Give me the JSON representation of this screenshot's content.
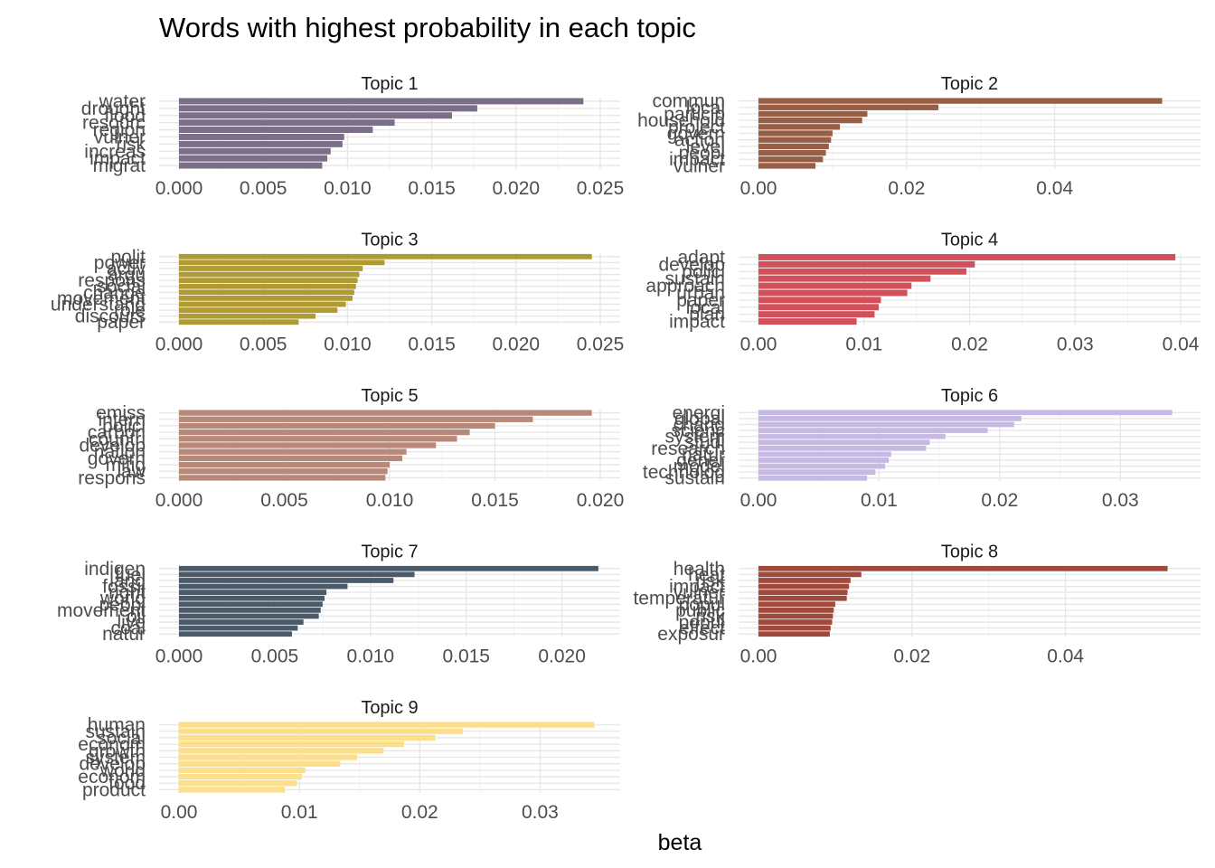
{
  "chart_data": {
    "type": "bar",
    "title": "Words with highest probability in each topic",
    "xlabel": "beta",
    "orientation": "horizontal",
    "grid": true,
    "facets": [
      {
        "label": "Topic 1",
        "color": "#7b6e87",
        "xlim": [
          0,
          0.025
        ],
        "ticks": [
          0,
          0.005,
          0.01,
          0.015,
          0.02,
          0.025
        ],
        "tick_labels": [
          "0.000",
          "0.005",
          "0.010",
          "0.015",
          "0.020",
          "0.025"
        ],
        "words": [
          "water",
          "drought",
          "flood",
          "resourc",
          "region",
          "vulner",
          "risk",
          "increas",
          "impact",
          "migrat"
        ],
        "values": [
          0.024,
          0.0177,
          0.0162,
          0.0128,
          0.0115,
          0.0098,
          0.0097,
          0.009,
          0.0088,
          0.0085
        ]
      },
      {
        "label": "Topic 2",
        "color": "#985e45",
        "xlim": [
          0,
          0.057
        ],
        "ticks": [
          0,
          0.02,
          0.04
        ],
        "tick_labels": [
          "0.00",
          "0.02",
          "0.04"
        ],
        "words": [
          "commun",
          "local",
          "particip",
          "household",
          "project",
          "govern",
          "action",
          "level",
          "peopl",
          "impact",
          "vulner"
        ],
        "values": [
          0.0545,
          0.0243,
          0.0147,
          0.014,
          0.011,
          0.01,
          0.0098,
          0.0095,
          0.0091,
          0.0087,
          0.0077
        ]
      },
      {
        "label": "Topic 3",
        "color": "#b09a33",
        "xlim": [
          0,
          0.025
        ],
        "ticks": [
          0,
          0.005,
          0.01,
          0.015,
          0.02,
          0.025
        ],
        "tick_labels": [
          "0.000",
          "0.005",
          "0.010",
          "0.015",
          "0.020",
          "0.025"
        ],
        "words": [
          "polit",
          "power",
          "activ",
          "argu",
          "respons",
          "social",
          "change",
          "movement",
          "understand",
          "role",
          "discours",
          "paper"
        ],
        "values": [
          0.0245,
          0.0122,
          0.0109,
          0.0107,
          0.0106,
          0.0105,
          0.0104,
          0.0103,
          0.0099,
          0.0094,
          0.0081,
          0.0071
        ]
      },
      {
        "label": "Topic 4",
        "color": "#d1505a",
        "xlim": [
          0,
          0.04
        ],
        "ticks": [
          0,
          0.01,
          0.02,
          0.03,
          0.04
        ],
        "tick_labels": [
          "0.00",
          "0.01",
          "0.02",
          "0.03",
          "0.04"
        ],
        "words": [
          "adapt",
          "develop",
          "polici",
          "sustain",
          "approach",
          "urban",
          "paper",
          "local",
          "plan",
          "impact"
        ],
        "values": [
          0.0395,
          0.0205,
          0.0197,
          0.0163,
          0.0145,
          0.0141,
          0.0116,
          0.0114,
          0.011,
          0.0093
        ]
      },
      {
        "label": "Topic 5",
        "color": "#b88878",
        "xlim": [
          0,
          0.02
        ],
        "ticks": [
          0,
          0.005,
          0.01,
          0.015,
          0.02
        ],
        "tick_labels": [
          "0.000",
          "0.005",
          "0.010",
          "0.015",
          "0.020"
        ],
        "words": [
          "emiss",
          "intern",
          "polici",
          "carbon",
          "countri",
          "develop",
          "nation",
          "govern",
          "mitig",
          "law",
          "respons"
        ],
        "values": [
          0.0196,
          0.0168,
          0.015,
          0.0138,
          0.0132,
          0.0122,
          0.0108,
          0.0106,
          0.01,
          0.0099,
          0.0098
        ]
      },
      {
        "label": "Topic 6",
        "color": "#c6bae4",
        "xlim": [
          0,
          0.035
        ],
        "ticks": [
          0,
          0.01,
          0.02,
          0.03
        ],
        "tick_labels": [
          "0.00",
          "0.01",
          "0.02",
          "0.03"
        ],
        "words": [
          "energi",
          "global",
          "chang",
          "scienc",
          "system",
          "studi",
          "research",
          "natur",
          "gener",
          "model",
          "technolog",
          "sustain"
        ],
        "values": [
          0.0343,
          0.0218,
          0.0212,
          0.019,
          0.0155,
          0.0142,
          0.0139,
          0.011,
          0.0108,
          0.0105,
          0.0097,
          0.009
        ]
      },
      {
        "label": "Topic 7",
        "color": "#4a5a68",
        "xlim": [
          0,
          0.022
        ],
        "ticks": [
          0,
          0.005,
          0.01,
          0.015,
          0.02
        ],
        "tick_labels": [
          "0.000",
          "0.005",
          "0.010",
          "0.015",
          "0.020"
        ],
        "words": [
          "indigen",
          "fuel",
          "land",
          "fossil",
          "right",
          "world",
          "peopl",
          "movement",
          "oil",
          "live",
          "coal",
          "natur"
        ],
        "values": [
          0.0219,
          0.0123,
          0.0112,
          0.0088,
          0.0077,
          0.0076,
          0.0075,
          0.0074,
          0.0073,
          0.0065,
          0.0062,
          0.0059
        ]
      },
      {
        "label": "Topic 8",
        "color": "#a14a3c",
        "xlim": [
          0,
          0.055
        ],
        "ticks": [
          0,
          0.02,
          0.04
        ],
        "tick_labels": [
          "0.00",
          "0.02",
          "0.04"
        ],
        "words": [
          "health",
          "heat",
          "risk",
          "impact",
          "vulner",
          "temperatur",
          "popul",
          "public",
          "risk",
          "popul",
          "effect",
          "exposur"
        ],
        "values": [
          0.0533,
          0.0134,
          0.012,
          0.0118,
          0.0116,
          0.0115,
          0.01,
          0.0098,
          0.0097,
          0.0096,
          0.0094,
          0.0093
        ]
      },
      {
        "label": "Topic 9",
        "color": "#fbdf8c",
        "xlim": [
          0,
          0.035
        ],
        "ticks": [
          0,
          0.01,
          0.02,
          0.03
        ],
        "tick_labels": [
          "0.00",
          "0.01",
          "0.02",
          "0.03"
        ],
        "words": [
          "human",
          "sustain",
          "social",
          "econom",
          "growth",
          "system",
          "develop",
          "world",
          "econom",
          "food",
          "product"
        ],
        "values": [
          0.0345,
          0.0236,
          0.0213,
          0.0187,
          0.017,
          0.0148,
          0.0134,
          0.0105,
          0.0102,
          0.0098,
          0.0088
        ]
      }
    ]
  }
}
